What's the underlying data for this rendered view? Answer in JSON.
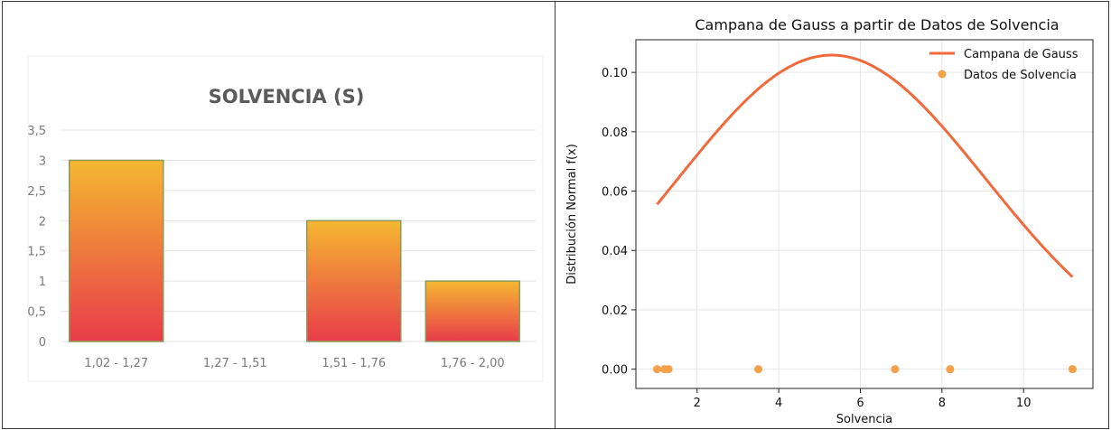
{
  "chart_data": [
    {
      "type": "bar",
      "title": "SOLVENCIA (S)",
      "categories": [
        "1,02 - 1,27",
        "1,27 - 1,51",
        "1,51 - 1,76",
        "1,76 - 2,00"
      ],
      "values": [
        3,
        0,
        2,
        1
      ],
      "ylim": [
        0,
        3.5
      ],
      "yticks": [
        "0",
        "0,5",
        "1",
        "1,5",
        "2",
        "2,5",
        "3",
        "3,5"
      ],
      "ytick_values": [
        0,
        0.5,
        1,
        1.5,
        2,
        2.5,
        3,
        3.5
      ],
      "grid": true,
      "colors": {
        "bar_top": "#f5b731",
        "bar_bottom": "#e83c4a",
        "bar_edge": "#8b9a5b",
        "gridline": "#e3e3e3",
        "text": "#7a7a7a",
        "title": "#5a5a5a"
      }
    },
    {
      "type": "line",
      "title": "Campana de Gauss a partir de Datos de Solvencia",
      "xlabel": "Solvencia",
      "ylabel": "Distribución Normal f(x)",
      "xlim": [
        0.5,
        11.7
      ],
      "ylim": [
        -0.0065,
        0.111
      ],
      "xticks": [
        2,
        4,
        6,
        8,
        10
      ],
      "yticks": [
        0.0,
        0.02,
        0.04,
        0.06,
        0.08,
        0.1
      ],
      "ytick_labels": [
        "0.00",
        "0.02",
        "0.04",
        "0.06",
        "0.08",
        "0.10"
      ],
      "grid": true,
      "legend": "top-right",
      "series": [
        {
          "name": "Campana de Gauss",
          "kind": "line",
          "color": "#f06a3c",
          "mean": 5.3,
          "std": 3.77,
          "x_range": [
            1.02,
            11.2
          ]
        },
        {
          "name": "Datos de Solvencia",
          "kind": "scatter",
          "color": "#f5a04a",
          "x": [
            1.02,
            1.2,
            1.3,
            3.5,
            6.85,
            8.2,
            11.2
          ],
          "y": [
            0,
            0,
            0,
            0,
            0,
            0,
            0
          ]
        }
      ]
    }
  ]
}
